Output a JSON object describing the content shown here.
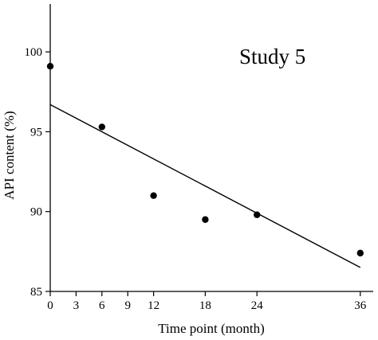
{
  "chart_data": {
    "type": "scatter",
    "title": "",
    "annotation": "Study 5",
    "xlabel": "Time point (month)",
    "ylabel": "API content (%)",
    "xlim": [
      0,
      37.5
    ],
    "ylim": [
      85,
      103
    ],
    "x_ticks": [
      0,
      3,
      6,
      9,
      12,
      18,
      24,
      36
    ],
    "y_ticks": [
      85,
      90,
      95,
      100
    ],
    "series": [
      {
        "x": [
          0,
          6,
          12,
          18,
          24,
          36
        ],
        "y": [
          99.1,
          95.3,
          91.0,
          89.5,
          89.8,
          87.4
        ]
      }
    ],
    "fit_line": {
      "x": [
        0,
        36
      ],
      "y": [
        96.7,
        86.5
      ]
    },
    "grid": false,
    "legend": "none"
  }
}
